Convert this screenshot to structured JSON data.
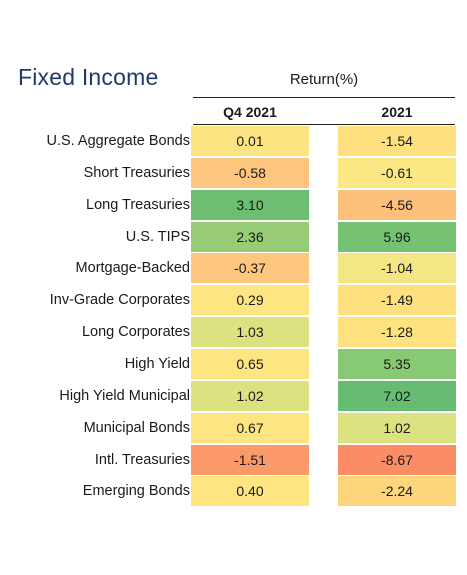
{
  "title": "Fixed Income",
  "return_header": "Return(%)",
  "chart_data": {
    "type": "table",
    "title": "Fixed Income",
    "header": "Return(%)",
    "columns": [
      "Q4 2021",
      "2021"
    ],
    "rows": [
      {
        "label": "U.S. Aggregate Bonds",
        "values": [
          "0.01",
          "-1.54"
        ],
        "colors": [
          "#fde482",
          "#fee17e"
        ]
      },
      {
        "label": "Short Treasuries",
        "values": [
          "-0.58",
          "-0.61"
        ],
        "colors": [
          "#fdc57d",
          "#fbe784"
        ]
      },
      {
        "label": "Long Treasuries",
        "values": [
          "3.10",
          "-4.56"
        ],
        "colors": [
          "#6dbe72",
          "#fdc17c"
        ]
      },
      {
        "label": "U.S. TIPS",
        "values": [
          "2.36",
          "5.96"
        ],
        "colors": [
          "#99cc76",
          "#76c273"
        ]
      },
      {
        "label": "Mortgage-Backed",
        "values": [
          "-0.37",
          "-1.04"
        ],
        "colors": [
          "#fdc87e",
          "#f3e684"
        ]
      },
      {
        "label": "Inv-Grade Corporates",
        "values": [
          "0.29",
          "-1.49"
        ],
        "colors": [
          "#fde582",
          "#fee17e"
        ]
      },
      {
        "label": "Long Corporates",
        "values": [
          "1.03",
          "-1.28"
        ],
        "colors": [
          "#dde281",
          "#fde27f"
        ]
      },
      {
        "label": "High Yield",
        "values": [
          "0.65",
          "5.35"
        ],
        "colors": [
          "#fde581",
          "#88c974"
        ]
      },
      {
        "label": "High Yield Municipal",
        "values": [
          "1.02",
          "7.02"
        ],
        "colors": [
          "#dde281",
          "#66bc71"
        ]
      },
      {
        "label": "Municipal Bonds",
        "values": [
          "0.67",
          "1.02"
        ],
        "colors": [
          "#fde581",
          "#dde281"
        ]
      },
      {
        "label": "Intl. Treasuries",
        "values": [
          "-1.51",
          "-8.67"
        ],
        "colors": [
          "#fc9968",
          "#fb8d65"
        ]
      },
      {
        "label": "Emerging Bonds",
        "values": [
          "0.40",
          "-2.24"
        ],
        "colors": [
          "#fde582",
          "#fdd67c"
        ]
      }
    ]
  }
}
